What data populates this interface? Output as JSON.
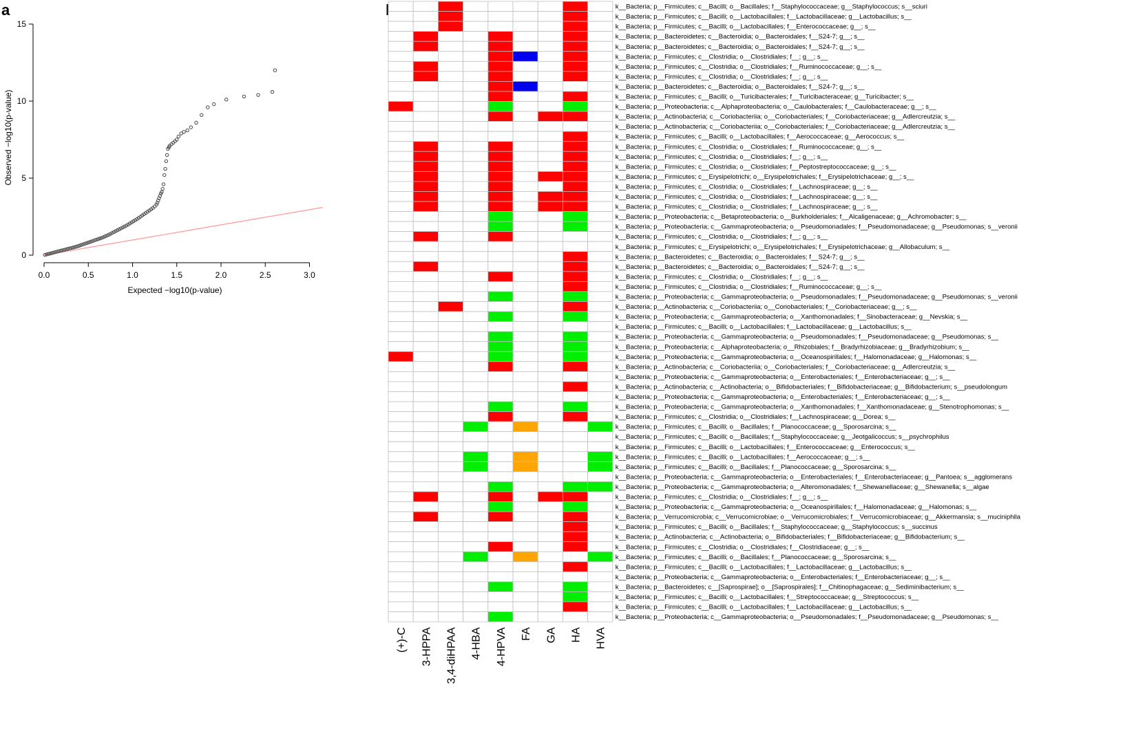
{
  "panels": {
    "a": "a",
    "b": "b"
  },
  "colors": {
    "positive": "#ff0000",
    "negative": "#00ee00",
    "blue": "#0000ee",
    "orange": "#ffa500",
    "cell_border": "#bfbfbf",
    "expected_line": "#ff9c9c",
    "point": "#444444"
  },
  "chart_data": [
    {
      "type": "scatter",
      "title": "",
      "xlabel": "Expected −log10(p-value)",
      "ylabel": "Observed −log10(p-value)",
      "xlim": [
        0,
        3.1
      ],
      "ylim": [
        0,
        15
      ],
      "xticks": [
        "0.0",
        "0.5",
        "1.0",
        "1.5",
        "2.0",
        "2.5",
        "3.0"
      ],
      "yticks": [
        "0",
        "5",
        "10",
        "15"
      ],
      "reference_line": {
        "x": [
          0,
          3.15
        ],
        "y": [
          0,
          3.1
        ]
      },
      "points": {
        "x": [
          0.01,
          0.03,
          0.05,
          0.07,
          0.09,
          0.11,
          0.13,
          0.15,
          0.17,
          0.19,
          0.21,
          0.23,
          0.25,
          0.27,
          0.29,
          0.31,
          0.33,
          0.35,
          0.37,
          0.39,
          0.41,
          0.43,
          0.45,
          0.47,
          0.49,
          0.51,
          0.53,
          0.55,
          0.57,
          0.59,
          0.61,
          0.63,
          0.65,
          0.67,
          0.69,
          0.71,
          0.73,
          0.75,
          0.77,
          0.79,
          0.81,
          0.83,
          0.85,
          0.87,
          0.89,
          0.91,
          0.93,
          0.95,
          0.97,
          0.99,
          1.01,
          1.03,
          1.05,
          1.07,
          1.09,
          1.11,
          1.13,
          1.15,
          1.17,
          1.19,
          1.21,
          1.23,
          1.25,
          1.27,
          1.28,
          1.29,
          1.3,
          1.31,
          1.32,
          1.33,
          1.34,
          1.35,
          1.36,
          1.37,
          1.38,
          1.39,
          1.4,
          1.41,
          1.42,
          1.44,
          1.46,
          1.48,
          1.5,
          1.52,
          1.55,
          1.58,
          1.62,
          1.66,
          1.72,
          1.78,
          1.85,
          1.92,
          2.06,
          2.26,
          2.42,
          2.58,
          2.61
        ],
        "y": [
          0.02,
          0.05,
          0.08,
          0.11,
          0.14,
          0.17,
          0.2,
          0.23,
          0.26,
          0.29,
          0.32,
          0.35,
          0.38,
          0.41,
          0.44,
          0.47,
          0.5,
          0.53,
          0.56,
          0.6,
          0.64,
          0.68,
          0.72,
          0.76,
          0.8,
          0.84,
          0.88,
          0.92,
          0.96,
          1.0,
          1.04,
          1.08,
          1.12,
          1.17,
          1.22,
          1.27,
          1.32,
          1.38,
          1.44,
          1.5,
          1.56,
          1.62,
          1.68,
          1.74,
          1.8,
          1.86,
          1.92,
          1.99,
          2.06,
          2.13,
          2.2,
          2.27,
          2.34,
          2.42,
          2.5,
          2.58,
          2.66,
          2.74,
          2.82,
          2.9,
          2.98,
          3.06,
          3.16,
          3.28,
          3.4,
          3.55,
          3.7,
          3.85,
          4.0,
          4.1,
          4.3,
          4.6,
          5.2,
          5.6,
          6.1,
          6.5,
          6.9,
          7.0,
          7.1,
          7.2,
          7.3,
          7.4,
          7.5,
          7.7,
          7.9,
          8.0,
          8.1,
          8.3,
          8.6,
          9.1,
          9.6,
          9.8,
          10.1,
          10.3,
          10.4,
          10.6,
          12.0
        ]
      }
    },
    {
      "type": "heatmap",
      "title": "",
      "columns": [
        "(+)-C",
        "3-HPPA",
        "3,4-diHPAA",
        "4-HBA",
        "4-HPVA",
        "FA",
        "GA",
        "HA",
        "HVA"
      ],
      "rows": [
        "k__Bacteria; p__Firmicutes; c__Bacilli; o__Bacillales; f__Staphylococcaceae; g__Staphylococcus; s__sciuri",
        "k__Bacteria; p__Firmicutes; c__Bacilli; o__Lactobacillales; f__Lactobacillaceae; g__Lactobacillus; s__",
        "k__Bacteria; p__Firmicutes; c__Bacilli; o__Lactobacillales; f__Enterococcaceae; g__; s__",
        "k__Bacteria; p__Bacteroidetes; c__Bacteroidia; o__Bacteroidales; f__S24-7; g__; s__",
        "k__Bacteria; p__Bacteroidetes; c__Bacteroidia; o__Bacteroidales; f__S24-7; g__; s__",
        "k__Bacteria; p__Firmicutes; c__Clostridia; o__Clostridiales; f__; g__; s__",
        "k__Bacteria; p__Firmicutes; c__Clostridia; o__Clostridiales; f__Ruminococcaceae; g__; s__",
        "k__Bacteria; p__Firmicutes; c__Clostridia; o__Clostridiales; f__; g__; s__",
        "k__Bacteria; p__Bacteroidetes; c__Bacteroidia; o__Bacteroidales; f__S24-7; g__; s__",
        "k__Bacteria; p__Firmicutes; c__Bacilli; o__Turicibacterales; f__Turicibacteraceae; g__Turicibacter; s__",
        "k__Bacteria; p__Proteobacteria; c__Alphaproteobacteria; o__Caulobacterales; f__Caulobacteraceae; g__; s__",
        "k__Bacteria; p__Actinobacteria; c__Coriobacteriia; o__Coriobacteriales; f__Coriobacteriaceae; g__Adlercreutzia; s__",
        "k__Bacteria; p__Actinobacteria; c__Coriobacteriia; o__Coriobacteriales; f__Coriobacteriaceae; g__Adlercreutzia; s__",
        "k__Bacteria; p__Firmicutes; c__Bacilli; o__Lactobacillales; f__Aerococcaceae; g__Aerococcus; s__",
        "k__Bacteria; p__Firmicutes; c__Clostridia; o__Clostridiales; f__Ruminococcaceae; g__; s__",
        "k__Bacteria; p__Firmicutes; c__Clostridia; o__Clostridiales; f__; g__; s__",
        "k__Bacteria; p__Firmicutes; c__Clostridia; o__Clostridiales; f__Peptostreptococcaceae; g__; s__",
        "k__Bacteria; p__Firmicutes; c__Erysipelotrichi; o__Erysipelotrichales; f__Erysipelotrichaceae; g__; s__",
        "k__Bacteria; p__Firmicutes; c__Clostridia; o__Clostridiales; f__Lachnospiraceae; g__; s__",
        "k__Bacteria; p__Firmicutes; c__Clostridia; o__Clostridiales; f__Lachnospiraceae; g__; s__",
        "k__Bacteria; p__Firmicutes; c__Clostridia; o__Clostridiales; f__Lachnospiraceae; g__; s__",
        "k__Bacteria; p__Proteobacteria; c__Betaproteobacteria; o__Burkholderiales; f__Alcaligenaceae; g__Achromobacter; s__",
        "k__Bacteria; p__Proteobacteria; c__Gammaproteobacteria; o__Pseudomonadales; f__Pseudomonadaceae; g__Pseudomonas; s__veronii",
        "k__Bacteria; p__Firmicutes; c__Clostridia; o__Clostridiales; f__; g__; s__",
        "k__Bacteria; p__Firmicutes; c__Erysipelotrichi; o__Erysipelotrichales; f__Erysipelotrichaceae; g__Allobaculum; s__",
        "k__Bacteria; p__Bacteroidetes; c__Bacteroidia; o__Bacteroidales; f__S24-7; g__; s__",
        "k__Bacteria; p__Bacteroidetes; c__Bacteroidia; o__Bacteroidales; f__S24-7; g__; s__",
        "k__Bacteria; p__Firmicutes; c__Clostridia; o__Clostridiales; f__; g__; s__",
        "k__Bacteria; p__Firmicutes; c__Clostridia; o__Clostridiales; f__Ruminococcaceae; g__; s__",
        "k__Bacteria; p__Proteobacteria; c__Gammaproteobacteria; o__Pseudomonadales; f__Pseudomonadaceae; g__Pseudomonas; s__veronii",
        "k__Bacteria; p__Actinobacteria; c__Coriobacteriia; o__Coriobacteriales; f__Coriobacteriaceae; g__; s__",
        "k__Bacteria; p__Proteobacteria; c__Gammaproteobacteria; o__Xanthomonadales; f__Sinobacteraceae; g__Nevskia; s__",
        "k__Bacteria; p__Firmicutes; c__Bacilli; o__Lactobacillales; f__Lactobacillaceae; g__Lactobacillus; s__",
        "k__Bacteria; p__Proteobacteria; c__Gammaproteobacteria; o__Pseudomonadales; f__Pseudomonadaceae; g__Pseudomonas; s__",
        "k__Bacteria; p__Proteobacteria; c__Alphaproteobacteria; o__Rhizobiales; f__Bradyrhizobiaceae; g__Bradyrhizobium; s__",
        "k__Bacteria; p__Proteobacteria; c__Gammaproteobacteria; o__Oceanospirillales; f__Halomonadaceae; g__Halomonas; s__",
        "k__Bacteria; p__Actinobacteria; c__Coriobacteriia; o__Coriobacteriales; f__Coriobacteriaceae; g__Adlercreutzia; s__",
        "k__Bacteria; p__Proteobacteria; c__Gammaproteobacteria; o__Enterobacteriales; f__Enterobacteriaceae; g__; s__",
        "k__Bacteria; p__Actinobacteria; c__Actinobacteria; o__Bifidobacteriales; f__Bifidobacteriaceae; g__Bifidobacterium; s__pseudolongum",
        "k__Bacteria; p__Proteobacteria; c__Gammaproteobacteria; o__Enterobacteriales; f__Enterobacteriaceae; g__; s__",
        "k__Bacteria; p__Proteobacteria; c__Gammaproteobacteria; o__Xanthomonadales; f__Xanthomonadaceae; g__Stenotrophomonas; s__",
        "k__Bacteria; p__Firmicutes; c__Clostridia; o__Clostridiales; f__Lachnospiraceae; g__Dorea; s__",
        "k__Bacteria; p__Firmicutes; c__Bacilli; o__Bacillales; f__Planococcaceae; g__Sporosarcina; s__",
        "k__Bacteria; p__Firmicutes; c__Bacilli; o__Bacillales; f__Staphylococcaceae; g__Jeotgalicoccus; s__psychrophilus",
        "k__Bacteria; p__Firmicutes; c__Bacilli; o__Lactobacillales; f__Enterococcaceae; g__Enterococcus; s__",
        "k__Bacteria; p__Firmicutes; c__Bacilli; o__Lactobacillales; f__Aerococcaceae; g__; s__",
        "k__Bacteria; p__Firmicutes; c__Bacilli; o__Bacillales; f__Planococcaceae; g__Sporosarcina; s__",
        "k__Bacteria; p__Proteobacteria; c__Gammaproteobacteria; o__Enterobacteriales; f__Enterobacteriaceae; g__Pantoea; s__agglomerans",
        "k__Bacteria; p__Proteobacteria; c__Gammaproteobacteria; o__Alteromonadales; f__Shewanellaceae; g__Shewanella; s__algae",
        "k__Bacteria; p__Firmicutes; c__Clostridia; o__Clostridiales; f__; g__; s__",
        "k__Bacteria; p__Proteobacteria; c__Gammaproteobacteria; o__Oceanospirillales; f__Halomonadaceae; g__Halomonas; s__",
        "k__Bacteria; p__Verrucomicrobia; c__Verrucomicrobiae; o__Verrucomicrobiales; f__Verrucomicrobiaceae; g__Akkermansia; s__muciniphila",
        "k__Bacteria; p__Firmicutes; c__Bacilli; o__Bacillales; f__Staphylococcaceae; g__Staphylococcus; s__succinus",
        "k__Bacteria; p__Actinobacteria; c__Actinobacteria; o__Bifidobacteriales; f__Bifidobacteriaceae; g__Bifidobacterium; s__",
        "k__Bacteria; p__Firmicutes; c__Clostridia; o__Clostridiales; f__Clostridiaceae; g__; s__",
        "k__Bacteria; p__Firmicutes; c__Bacilli; o__Bacillales; f__Planococcaceae; g__Sporosarcina; s__",
        "k__Bacteria; p__Firmicutes; c__Bacilli; o__Lactobacillales; f__Lactobacillaceae; g__Lactobacillus; s__",
        "k__Bacteria; p__Proteobacteria; c__Gammaproteobacteria; o__Enterobacteriales; f__Enterobacteriaceae; g__; s__",
        "k__Bacteria; p__Bacteroidetes; c__[Saprospirae]; o__[Saprospirales]; f__Chitinophagaceae; g__Sediminibacterium; s__",
        "k__Bacteria; p__Firmicutes; c__Bacilli; o__Lactobacillales; f__Streptococcaceae; g__Streptococcus; s__",
        "k__Bacteria; p__Firmicutes; c__Bacilli; o__Lactobacillales; f__Lactobacillaceae; g__Lactobacillus; s__",
        "k__Bacteria; p__Proteobacteria; c__Gammaproteobacteria; o__Pseudomonadales; f__Pseudomonadaceae; g__Pseudomonas; s__"
      ],
      "values": [
        "..R....R.",
        "..R....R.",
        "..R....R.",
        ".R..R..R.",
        ".R..R..R.",
        "....RB.R.",
        ".R..R..R.",
        ".R..R..R.",
        "....RB...",
        "....R..R.",
        "R...G..G.",
        "....R.RR.",
        ".........",
        ".......R.",
        ".R..R..R.",
        ".R..R..R.",
        ".R..R..R.",
        ".R..R.RR.",
        ".R..R..R.",
        ".R..R.RR.",
        ".R..R.RR.",
        "....G..G.",
        "....G..G.",
        ".R..R....",
        ".........",
        ".......R.",
        ".R.....R.",
        "....R..R.",
        ".......R.",
        "....G..G.",
        "..R....R.",
        "....G..G.",
        ".........",
        "....G..G.",
        "....G..G.",
        "R...G..G.",
        "....R..R.",
        ".........",
        ".......R.",
        ".........",
        "....G..G.",
        "....R..R.",
        "...G.O..G",
        ".........",
        ".........",
        "...G.O..G",
        "...G.O..G",
        ".........",
        "....G..GG",
        ".R..R.RR.",
        "....G..G.",
        ".R..R..R.",
        ".......R.",
        ".......R.",
        "....R..R.",
        "...G.O..G",
        ".......R.",
        ".........",
        "....G..G.",
        ".......G.",
        ".......R.",
        "....G...."
      ]
    }
  ]
}
